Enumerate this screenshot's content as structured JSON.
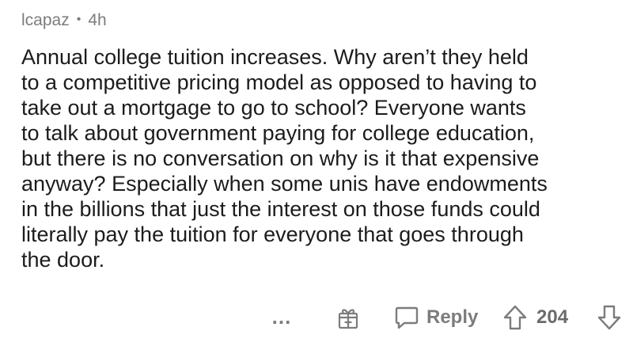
{
  "comment": {
    "author": "lcapaz",
    "separator": "•",
    "age": "4h",
    "body_lines": [
      "Annual college tuition increases. Why aren’t they held",
      "to a competitive pricing model as opposed to having to",
      "take out a mortgage to go to school?  Everyone wants",
      "to talk about government paying for college education,",
      "but there is no conversation on why is it that expensive",
      "anyway? Especially when some unis have endowments",
      "in the billions that just the interest on those funds could",
      "literally pay the tuition for everyone that goes through",
      "the door."
    ]
  },
  "actions": {
    "more_label": "...",
    "reply_label": "Reply",
    "score": "204",
    "icons": {
      "more": "more-options-icon",
      "award": "gift-award-icon",
      "reply": "speech-bubble-icon",
      "upvote": "arrow-up-icon",
      "downvote": "arrow-down-icon"
    }
  },
  "colors": {
    "text": "#1c1c1c",
    "meta": "#7c7c7c",
    "background": "#ffffff"
  }
}
